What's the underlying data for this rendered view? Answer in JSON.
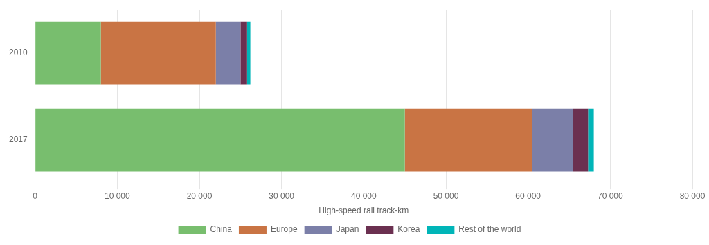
{
  "chart_data": {
    "type": "bar",
    "orientation": "horizontal",
    "stacked": true,
    "categories": [
      "2010",
      "2017"
    ],
    "series": [
      {
        "name": "China",
        "color": "#78be6e",
        "values": [
          8000,
          45000
        ]
      },
      {
        "name": "Europe",
        "color": "#c97444",
        "values": [
          14000,
          15500
        ]
      },
      {
        "name": "Japan",
        "color": "#7b7fa8",
        "values": [
          3000,
          5000
        ]
      },
      {
        "name": "Korea",
        "color": "#6b3050",
        "values": [
          800,
          1800
        ]
      },
      {
        "name": "Rest of the world",
        "color": "#00b5b8",
        "values": [
          400,
          700
        ]
      }
    ],
    "xlabel": "High-speed rail track-km",
    "xlim": [
      0,
      80000
    ],
    "xticks": [
      0,
      {
        "value": 10000,
        "label": "10 000"
      },
      {
        "value": 20000,
        "label": "20 000"
      },
      {
        "value": 30000,
        "label": "30 000"
      },
      {
        "value": 40000,
        "label": "40 000"
      },
      {
        "value": 50000,
        "label": "50 000"
      },
      {
        "value": 60000,
        "label": "60 000"
      },
      {
        "value": 70000,
        "label": "70 000"
      },
      {
        "value": 80000,
        "label": "80 000"
      }
    ],
    "grid": true,
    "legend": "bottom"
  }
}
